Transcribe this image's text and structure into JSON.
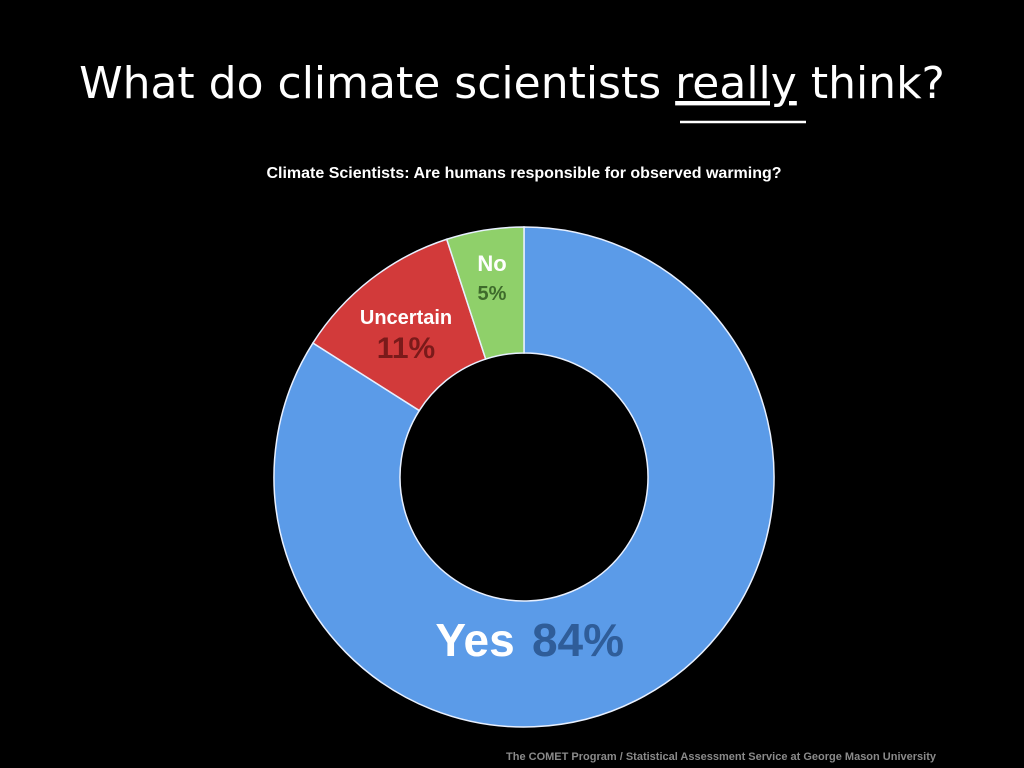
{
  "slide_title": {
    "before": "What do climate scientists",
    "emphasis": "really",
    "after": "think?"
  },
  "chart_data": {
    "type": "donut",
    "title": "Climate Scientists: Are humans responsible for observed warming?",
    "categories": [
      "Yes",
      "Uncertain",
      "No"
    ],
    "values": [
      84,
      11,
      5
    ],
    "value_labels": [
      "84%",
      "11%",
      "5%"
    ],
    "colors": [
      "#5b9be8",
      "#d23a3a",
      "#8fd06a"
    ],
    "source": "The COMET Program / Statistical Assessment Service at George Mason University"
  }
}
